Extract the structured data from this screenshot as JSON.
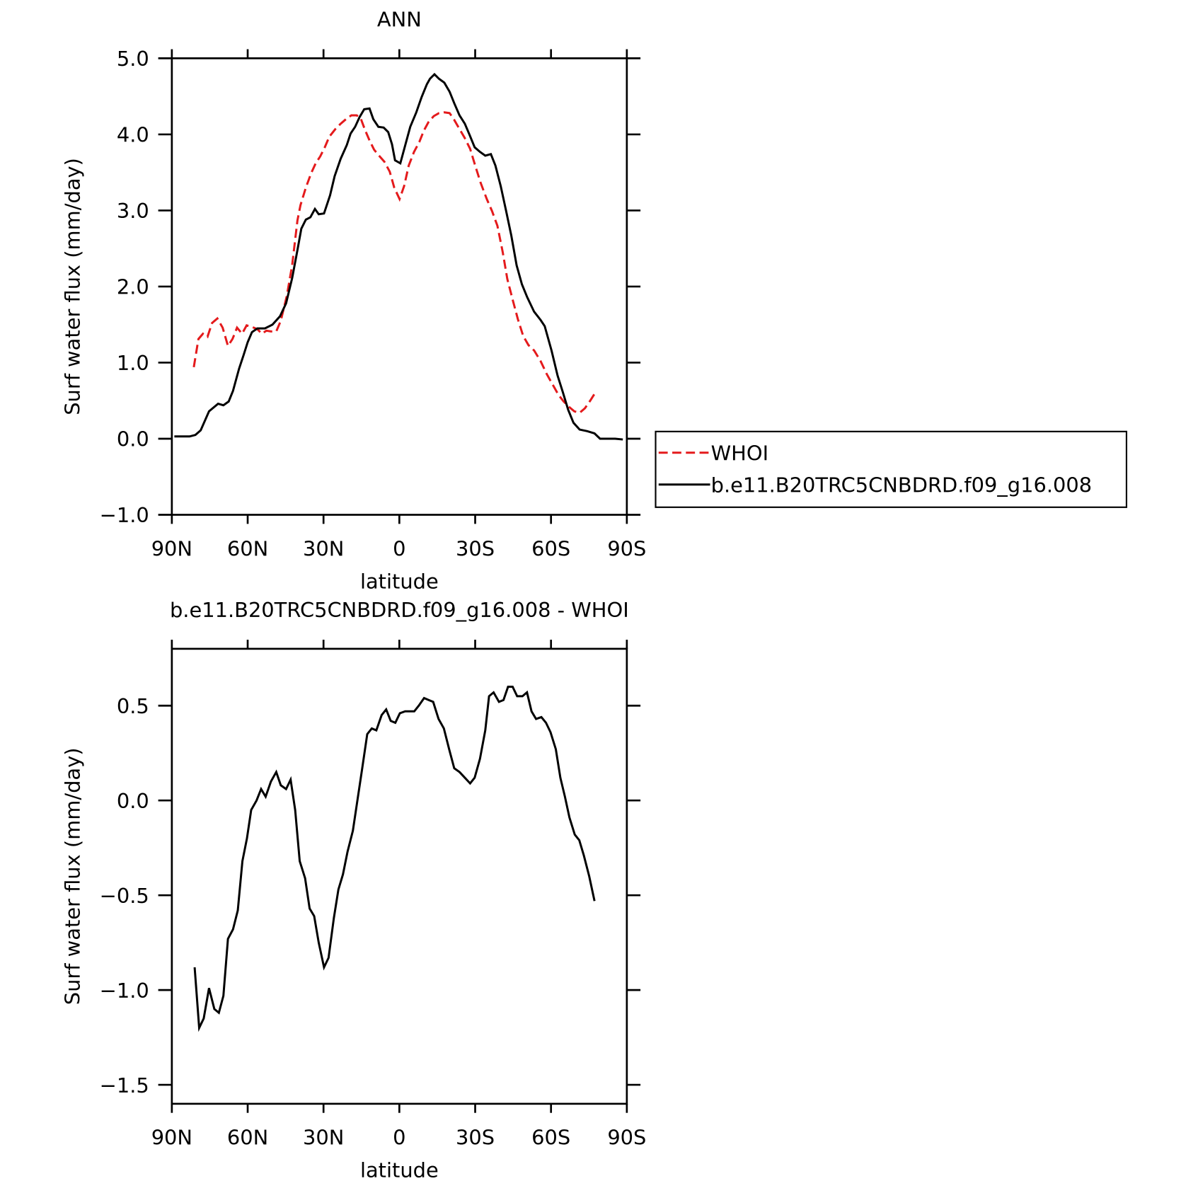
{
  "chart_data": [
    {
      "type": "line",
      "title": "ANN",
      "xlabel": "latitude",
      "ylabel": "Surf water flux (mm/day)",
      "xlim": [
        90,
        -90
      ],
      "ylim": [
        -1,
        5
      ],
      "xticks": [
        {
          "value": 90,
          "label": "90N"
        },
        {
          "value": 60,
          "label": "60N"
        },
        {
          "value": 30,
          "label": "30N"
        },
        0,
        {
          "value": -30,
          "label": "30S"
        },
        {
          "value": -60,
          "label": "60S"
        },
        {
          "value": -90,
          "label": "90S"
        }
      ],
      "yticks": [
        {
          "value": -1,
          "label": "−1.0"
        },
        {
          "value": 0,
          "label": "0.0"
        },
        {
          "value": 1,
          "label": "1.0"
        },
        {
          "value": 2,
          "label": "2.0"
        },
        {
          "value": 3,
          "label": "3.0"
        },
        {
          "value": 4,
          "label": "4.0"
        },
        {
          "value": 5,
          "label": "5.0"
        }
      ],
      "legend": "right",
      "series": [
        {
          "name": "WHOI",
          "color": "#e41a1c",
          "dashed": true,
          "x": [
            81.3,
            79.5,
            77.7,
            75.9,
            74.1,
            72,
            69.9,
            67.8,
            66,
            64.2,
            62.2,
            60.4,
            58.3,
            56.2,
            54.4,
            52.6,
            50.8,
            48.7,
            46.9,
            44.5,
            42.4,
            40.3,
            39.1,
            37,
            34.9,
            33.1,
            31.3,
            29.5,
            27.7,
            25.3,
            23.2,
            21.1,
            19,
            16.9,
            15.4,
            13.6,
            11.8,
            10,
            8.3,
            5.9,
            3.8,
            2,
            -0.1,
            -1.9,
            -3.7,
            -5.8,
            -7.9,
            -9.7,
            -11.5,
            -13.6,
            -15.7,
            -17.8,
            -19.9,
            -21.7,
            -23.8,
            -25.9,
            -28,
            -30.1,
            -32.2,
            -34.6,
            -36.7,
            -38.8,
            -40.9,
            -42.7,
            -44.8,
            -46.9,
            -49,
            -51.1,
            -53.3,
            -55.9,
            -58.3,
            -60.5,
            -62.9,
            -65,
            -67.1,
            -69.2,
            -71.3,
            -73.4,
            -75.5,
            -77.6
          ],
          "values": [
            0.94,
            1.31,
            1.38,
            1.34,
            1.52,
            1.58,
            1.46,
            1.22,
            1.31,
            1.46,
            1.38,
            1.49,
            1.47,
            1.44,
            1.38,
            1.42,
            1.41,
            1.41,
            1.55,
            1.88,
            2.28,
            2.87,
            3.07,
            3.3,
            3.49,
            3.62,
            3.71,
            3.83,
            3.97,
            4.07,
            4.14,
            4.2,
            4.25,
            4.25,
            4.22,
            4.06,
            3.92,
            3.8,
            3.73,
            3.64,
            3.51,
            3.3,
            3.15,
            3.32,
            3.59,
            3.77,
            3.9,
            4.05,
            4.16,
            4.24,
            4.28,
            4.29,
            4.28,
            4.19,
            4.07,
            3.95,
            3.81,
            3.58,
            3.36,
            3.15,
            2.99,
            2.8,
            2.45,
            2.1,
            1.83,
            1.57,
            1.35,
            1.23,
            1.16,
            1.02,
            0.85,
            0.72,
            0.58,
            0.49,
            0.42,
            0.36,
            0.34,
            0.4,
            0.5,
            0.61
          ]
        },
        {
          "name": "b.e11.B20TRC5CNBDRD.f09_g16.008",
          "color": "#000000",
          "dashed": false,
          "x": [
            89,
            83,
            80.7,
            78.6,
            75.3,
            71.7,
            69.6,
            67.5,
            65.8,
            63.4,
            61.6,
            60,
            58.3,
            56.2,
            53.2,
            50.2,
            47.2,
            44.8,
            42.4,
            40.3,
            38.8,
            37,
            35.2,
            33.4,
            31.9,
            29.8,
            27.4,
            25.6,
            23.2,
            20.8,
            19.3,
            17.5,
            15.7,
            13.9,
            11.8,
            10.3,
            8.3,
            6.2,
            4.4,
            2.9,
            1.7,
            -0.4,
            -2.2,
            -4.3,
            -6.7,
            -8.8,
            -10.9,
            -12.1,
            -13.9,
            -15.7,
            -17.8,
            -19.9,
            -21.7,
            -23.8,
            -25.9,
            -27.7,
            -29.8,
            -31.9,
            -34,
            -36.2,
            -38,
            -40.1,
            -42.2,
            -44.3,
            -46.4,
            -48.5,
            -50.6,
            -53.3,
            -55.9,
            -57.5,
            -60.2,
            -62.6,
            -64.6,
            -66.8,
            -68.9,
            -71.3,
            -74.3,
            -77.2,
            -79.4,
            -82.4,
            -85.4,
            -88.4
          ],
          "values": [
            0.03,
            0.03,
            0.05,
            0.11,
            0.36,
            0.46,
            0.44,
            0.49,
            0.63,
            0.92,
            1.1,
            1.27,
            1.4,
            1.45,
            1.45,
            1.5,
            1.61,
            1.78,
            2.11,
            2.48,
            2.76,
            2.88,
            2.91,
            3.02,
            2.95,
            2.96,
            3.2,
            3.45,
            3.68,
            3.86,
            4.01,
            4.1,
            4.23,
            4.33,
            4.34,
            4.2,
            4.1,
            4.09,
            4.03,
            3.87,
            3.66,
            3.62,
            3.84,
            4.1,
            4.29,
            4.49,
            4.66,
            4.73,
            4.79,
            4.73,
            4.68,
            4.56,
            4.41,
            4.25,
            4.14,
            4.0,
            3.83,
            3.77,
            3.72,
            3.74,
            3.59,
            3.32,
            3.0,
            2.67,
            2.28,
            2.03,
            1.86,
            1.67,
            1.56,
            1.48,
            1.16,
            0.83,
            0.62,
            0.38,
            0.21,
            0.12,
            0.1,
            0.07,
            0.0,
            0.0,
            0.0,
            -0.01
          ]
        }
      ]
    },
    {
      "type": "line",
      "title": "b.e11.B20TRC5CNBDRD.f09_g16.008 - WHOI",
      "xlabel": "latitude",
      "ylabel": "Surf water flux (mm/day)",
      "xlim": [
        90,
        -90
      ],
      "ylim": [
        -1.6,
        0.8
      ],
      "xticks": [
        {
          "value": 90,
          "label": "90N"
        },
        {
          "value": 60,
          "label": "60N"
        },
        {
          "value": 30,
          "label": "30N"
        },
        0,
        {
          "value": -30,
          "label": "30S"
        },
        {
          "value": -60,
          "label": "60S"
        },
        {
          "value": -90,
          "label": "90S"
        }
      ],
      "yticks": [
        {
          "value": -1.5,
          "label": "−1.5"
        },
        {
          "value": -1,
          "label": "−1.0"
        },
        {
          "value": -0.5,
          "label": "−0.5"
        },
        {
          "value": 0,
          "label": "0.0"
        },
        {
          "value": 0.5,
          "label": "0.5"
        }
      ],
      "series": [
        {
          "color": "#000000",
          "dashed": false,
          "x": [
            81,
            79.2,
            77.4,
            75.3,
            73.2,
            71.4,
            69.6,
            67.8,
            65.8,
            63.9,
            62.1,
            60.3,
            58.6,
            56.5,
            54.7,
            52.9,
            50.8,
            48.7,
            46.9,
            44.8,
            43,
            41.2,
            39.4,
            37.3,
            35.5,
            33.7,
            31.9,
            29.8,
            28,
            25.9,
            24.1,
            22.3,
            20.5,
            18.4,
            16.6,
            14.8,
            12.7,
            10.9,
            9.1,
            7,
            5.2,
            3.4,
            1.6,
            -0.2,
            -2.3,
            -4.1,
            -5.9,
            -7.7,
            -9.8,
            -11.6,
            -13.4,
            -15.5,
            -17.6,
            -19.7,
            -21.7,
            -23.8,
            -25.9,
            -28,
            -29.8,
            -31.9,
            -34,
            -35.5,
            -37.3,
            -39.4,
            -41.2,
            -43,
            -44.8,
            -46.6,
            -48.7,
            -50.5,
            -52.3,
            -54.1,
            -56.2,
            -58,
            -59.8,
            -61.9,
            -63.7,
            -65.5,
            -67.3,
            -69.4,
            -71.2,
            -73,
            -75.1,
            -77.2
          ],
          "values": [
            -0.88,
            -1.2,
            -1.15,
            -0.99,
            -1.1,
            -1.12,
            -1.03,
            -0.73,
            -0.68,
            -0.58,
            -0.32,
            -0.2,
            -0.05,
            0.0,
            0.06,
            0.02,
            0.1,
            0.15,
            0.08,
            0.06,
            0.11,
            -0.05,
            -0.32,
            -0.41,
            -0.57,
            -0.61,
            -0.75,
            -0.88,
            -0.83,
            -0.62,
            -0.47,
            -0.39,
            -0.27,
            -0.16,
            0.0,
            0.16,
            0.35,
            0.38,
            0.37,
            0.45,
            0.48,
            0.42,
            0.41,
            0.46,
            0.47,
            0.47,
            0.47,
            0.5,
            0.54,
            0.53,
            0.52,
            0.43,
            0.38,
            0.27,
            0.17,
            0.15,
            0.12,
            0.09,
            0.12,
            0.22,
            0.37,
            0.55,
            0.57,
            0.52,
            0.53,
            0.6,
            0.6,
            0.55,
            0.55,
            0.57,
            0.47,
            0.43,
            0.44,
            0.41,
            0.36,
            0.27,
            0.12,
            0.02,
            -0.09,
            -0.18,
            -0.21,
            -0.29,
            -0.4,
            -0.53
          ]
        }
      ]
    }
  ]
}
